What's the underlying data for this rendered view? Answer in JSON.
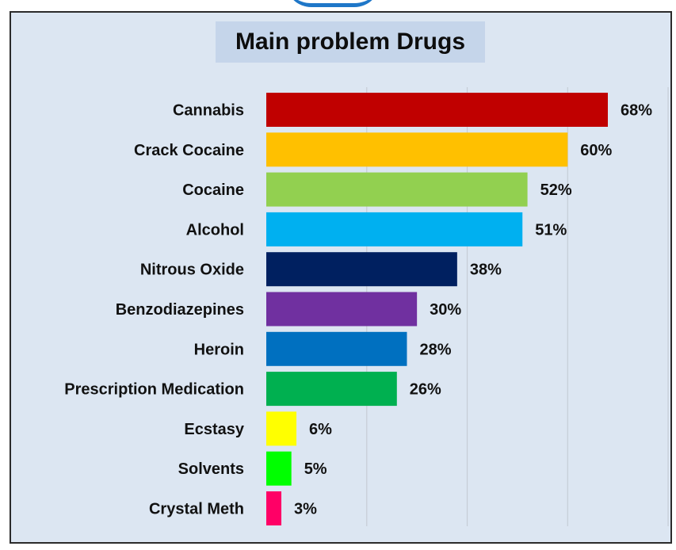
{
  "chart_data": {
    "type": "bar",
    "orientation": "horizontal",
    "title": "Main problem Drugs",
    "xlabel": "",
    "ylabel": "",
    "categories": [
      "Cannabis",
      "Crack Cocaine",
      "Cocaine",
      "Alcohol",
      "Nitrous Oxide",
      "Benzodiazepines",
      "Heroin",
      "Prescription Medication",
      "Ecstasy",
      "Solvents",
      "Crystal Meth"
    ],
    "values": [
      68,
      60,
      52,
      51,
      38,
      30,
      28,
      26,
      6,
      5,
      3
    ],
    "value_labels": [
      "68%",
      "60%",
      "52%",
      "51%",
      "38%",
      "30%",
      "28%",
      "26%",
      "6%",
      "5%",
      "3%"
    ],
    "colors": [
      "#c00000",
      "#ffc000",
      "#92d050",
      "#00b0f0",
      "#002060",
      "#7030a0",
      "#0070c0",
      "#00b050",
      "#ffff00",
      "#00ff00",
      "#ff0066"
    ],
    "unit": "%",
    "xlim": [
      0,
      80
    ],
    "grid": true,
    "legend": "none"
  }
}
